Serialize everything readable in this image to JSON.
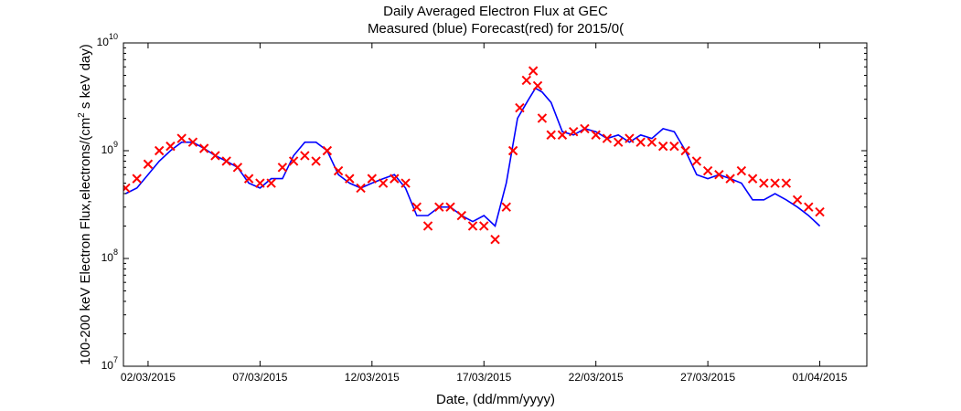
{
  "chart_data": {
    "type": "line",
    "title": "Daily Averaged Electron Flux at GEC",
    "subtitle": "Measured (blue) Forecast(red) for 2015/0(",
    "xlabel": "Date, (dd/mm/yyyy)",
    "ylabel_main": "100-200 keV Electron Flux,electrons/(cm",
    "ylabel_exp": "2",
    "ylabel_tail": " s keV day)",
    "x_ticks": [
      {
        "day": 2,
        "label": "02/03/2015"
      },
      {
        "day": 7,
        "label": "07/03/2015"
      },
      {
        "day": 12,
        "label": "12/03/2015"
      },
      {
        "day": 17,
        "label": "17/03/2015"
      },
      {
        "day": 22,
        "label": "22/03/2015"
      },
      {
        "day": 27,
        "label": "27/03/2015"
      },
      {
        "day": 32,
        "label": "01/04/2015"
      }
    ],
    "y_ticks": [
      {
        "exp": 7,
        "base": "10",
        "sup": "7"
      },
      {
        "exp": 8,
        "base": "10",
        "sup": "8"
      },
      {
        "exp": 9,
        "base": "10",
        "sup": "9"
      },
      {
        "exp": 10,
        "base": "10",
        "sup": "10"
      }
    ],
    "xlim_day": [
      0.9,
      34.1
    ],
    "ylim": [
      10000000.0,
      10000000000.0
    ],
    "yscale": "log",
    "grid": false,
    "legend": "none",
    "colors": {
      "measured": "#0000ff",
      "forecast": "#ff0000"
    },
    "series": [
      {
        "name": "Measured (blue)",
        "style": "line",
        "x": [
          1.0,
          1.5,
          2.0,
          2.5,
          3.0,
          3.5,
          4.0,
          4.5,
          5.0,
          5.5,
          6.0,
          6.5,
          7.0,
          7.5,
          8.0,
          8.5,
          9.0,
          9.5,
          10.0,
          10.5,
          11.0,
          11.5,
          12.0,
          12.5,
          13.0,
          13.5,
          14.0,
          14.5,
          15.0,
          15.5,
          16.0,
          16.5,
          17.0,
          17.5,
          18.0,
          18.5,
          19.0,
          19.3,
          19.6,
          20.0,
          20.5,
          21.0,
          21.5,
          22.0,
          22.5,
          23.0,
          23.5,
          24.0,
          24.5,
          25.0,
          25.5,
          26.0,
          26.5,
          27.0,
          27.5,
          28.0,
          28.5,
          29.0,
          29.5,
          30.0,
          30.5,
          31.0,
          31.5,
          32.0
        ],
        "y": [
          400000000.0,
          450000000.0,
          600000000.0,
          800000000.0,
          1000000000.0,
          1200000000.0,
          1200000000.0,
          1050000000.0,
          900000000.0,
          800000000.0,
          700000000.0,
          500000000.0,
          450000000.0,
          550000000.0,
          550000000.0,
          900000000.0,
          1200000000.0,
          1200000000.0,
          1000000000.0,
          600000000.0,
          500000000.0,
          450000000.0,
          500000000.0,
          550000000.0,
          600000000.0,
          450000000.0,
          250000000.0,
          250000000.0,
          300000000.0,
          300000000.0,
          250000000.0,
          220000000.0,
          250000000.0,
          200000000.0,
          500000000.0,
          2000000000.0,
          3000000000.0,
          3800000000.0,
          3500000000.0,
          2800000000.0,
          1500000000.0,
          1400000000.0,
          1600000000.0,
          1500000000.0,
          1300000000.0,
          1400000000.0,
          1200000000.0,
          1400000000.0,
          1300000000.0,
          1600000000.0,
          1500000000.0,
          1000000000.0,
          600000000.0,
          550000000.0,
          600000000.0,
          550000000.0,
          500000000.0,
          350000000.0,
          350000000.0,
          400000000.0,
          350000000.0,
          300000000.0,
          250000000.0,
          200000000.0
        ]
      },
      {
        "name": "Forecast(red)",
        "style": "markers-x",
        "x": [
          1.0,
          1.5,
          2.0,
          2.5,
          3.0,
          3.5,
          4.0,
          4.5,
          5.0,
          5.5,
          6.0,
          6.5,
          7.0,
          7.5,
          8.0,
          8.5,
          9.0,
          9.5,
          10.0,
          10.5,
          11.0,
          11.5,
          12.0,
          12.5,
          13.0,
          13.5,
          14.0,
          14.5,
          15.0,
          15.5,
          16.0,
          16.5,
          17.0,
          17.5,
          18.0,
          18.3,
          18.6,
          18.9,
          19.2,
          19.4,
          19.6,
          20.0,
          20.5,
          21.0,
          21.5,
          22.0,
          22.5,
          23.0,
          23.5,
          24.0,
          24.5,
          25.0,
          25.5,
          26.0,
          26.5,
          27.0,
          27.5,
          28.0,
          28.5,
          29.0,
          29.5,
          30.0,
          30.5,
          31.0,
          31.5,
          32.0
        ],
        "y": [
          450000000.0,
          550000000.0,
          750000000.0,
          1000000000.0,
          1100000000.0,
          1300000000.0,
          1200000000.0,
          1050000000.0,
          900000000.0,
          800000000.0,
          700000000.0,
          550000000.0,
          500000000.0,
          500000000.0,
          700000000.0,
          800000000.0,
          900000000.0,
          800000000.0,
          1000000000.0,
          650000000.0,
          550000000.0,
          450000000.0,
          550000000.0,
          500000000.0,
          550000000.0,
          500000000.0,
          300000000.0,
          200000000.0,
          300000000.0,
          300000000.0,
          250000000.0,
          200000000.0,
          200000000.0,
          150000000.0,
          300000000.0,
          1000000000.0,
          2500000000.0,
          4500000000.0,
          5500000000.0,
          4000000000.0,
          2000000000.0,
          1400000000.0,
          1400000000.0,
          1500000000.0,
          1600000000.0,
          1400000000.0,
          1300000000.0,
          1200000000.0,
          1300000000.0,
          1200000000.0,
          1200000000.0,
          1100000000.0,
          1100000000.0,
          1000000000.0,
          800000000.0,
          650000000.0,
          600000000.0,
          550000000.0,
          650000000.0,
          550000000.0,
          500000000.0,
          500000000.0,
          500000000.0,
          350000000.0,
          300000000.0,
          270000000.0
        ]
      }
    ]
  }
}
